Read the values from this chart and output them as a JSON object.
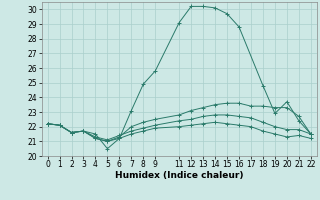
{
  "bg_color": "#cde8e5",
  "grid_color": "#aacfcc",
  "line_color": "#2a7a6a",
  "xlabel": "Humidex (Indice chaleur)",
  "xlim_min": -0.5,
  "xlim_max": 22.5,
  "ylim_min": 20,
  "ylim_max": 30.5,
  "xtick_pos": [
    0,
    1,
    2,
    3,
    4,
    5,
    6,
    7,
    8,
    9,
    11,
    12,
    13,
    14,
    15,
    16,
    17,
    18,
    19,
    20,
    21,
    22
  ],
  "xtick_labels": [
    "0",
    "1",
    "2",
    "3",
    "4",
    "5",
    "6",
    "7",
    "8",
    "9",
    "11",
    "12",
    "13",
    "14",
    "15",
    "16",
    "17",
    "18",
    "19",
    "20",
    "21",
    "22"
  ],
  "yticks": [
    20,
    21,
    22,
    23,
    24,
    25,
    26,
    27,
    28,
    29,
    30
  ],
  "lines": [
    {
      "x": [
        0,
        1,
        2,
        3,
        4,
        5,
        6,
        7,
        8,
        9,
        11,
        12,
        13,
        14,
        15,
        16,
        18,
        19,
        20,
        21,
        22
      ],
      "y": [
        22.2,
        22.1,
        21.6,
        21.7,
        21.5,
        20.5,
        21.2,
        23.1,
        24.9,
        25.8,
        29.1,
        30.2,
        30.2,
        30.1,
        29.7,
        28.8,
        24.8,
        22.9,
        23.7,
        22.4,
        21.5
      ]
    },
    {
      "x": [
        0,
        1,
        2,
        3,
        4,
        5,
        6,
        7,
        8,
        9,
        11,
        12,
        13,
        14,
        15,
        16,
        17,
        18,
        19,
        20,
        21,
        22
      ],
      "y": [
        22.2,
        22.1,
        21.6,
        21.7,
        21.2,
        21.0,
        21.3,
        22.0,
        22.3,
        22.5,
        22.8,
        23.1,
        23.3,
        23.5,
        23.6,
        23.6,
        23.4,
        23.4,
        23.3,
        23.3,
        22.7,
        21.5
      ]
    },
    {
      "x": [
        0,
        1,
        2,
        3,
        4,
        5,
        6,
        7,
        8,
        9,
        11,
        12,
        13,
        14,
        15,
        16,
        17,
        18,
        19,
        20,
        21,
        22
      ],
      "y": [
        22.2,
        22.1,
        21.6,
        21.7,
        21.3,
        21.1,
        21.4,
        21.7,
        21.9,
        22.1,
        22.4,
        22.5,
        22.7,
        22.8,
        22.8,
        22.7,
        22.6,
        22.3,
        22.0,
        21.8,
        21.8,
        21.5
      ]
    },
    {
      "x": [
        0,
        1,
        2,
        3,
        4,
        5,
        6,
        7,
        8,
        9,
        11,
        12,
        13,
        14,
        15,
        16,
        17,
        18,
        19,
        20,
        21,
        22
      ],
      "y": [
        22.2,
        22.1,
        21.6,
        21.7,
        21.2,
        21.0,
        21.2,
        21.5,
        21.7,
        21.9,
        22.0,
        22.1,
        22.2,
        22.3,
        22.2,
        22.1,
        22.0,
        21.7,
        21.5,
        21.3,
        21.4,
        21.2
      ]
    }
  ]
}
